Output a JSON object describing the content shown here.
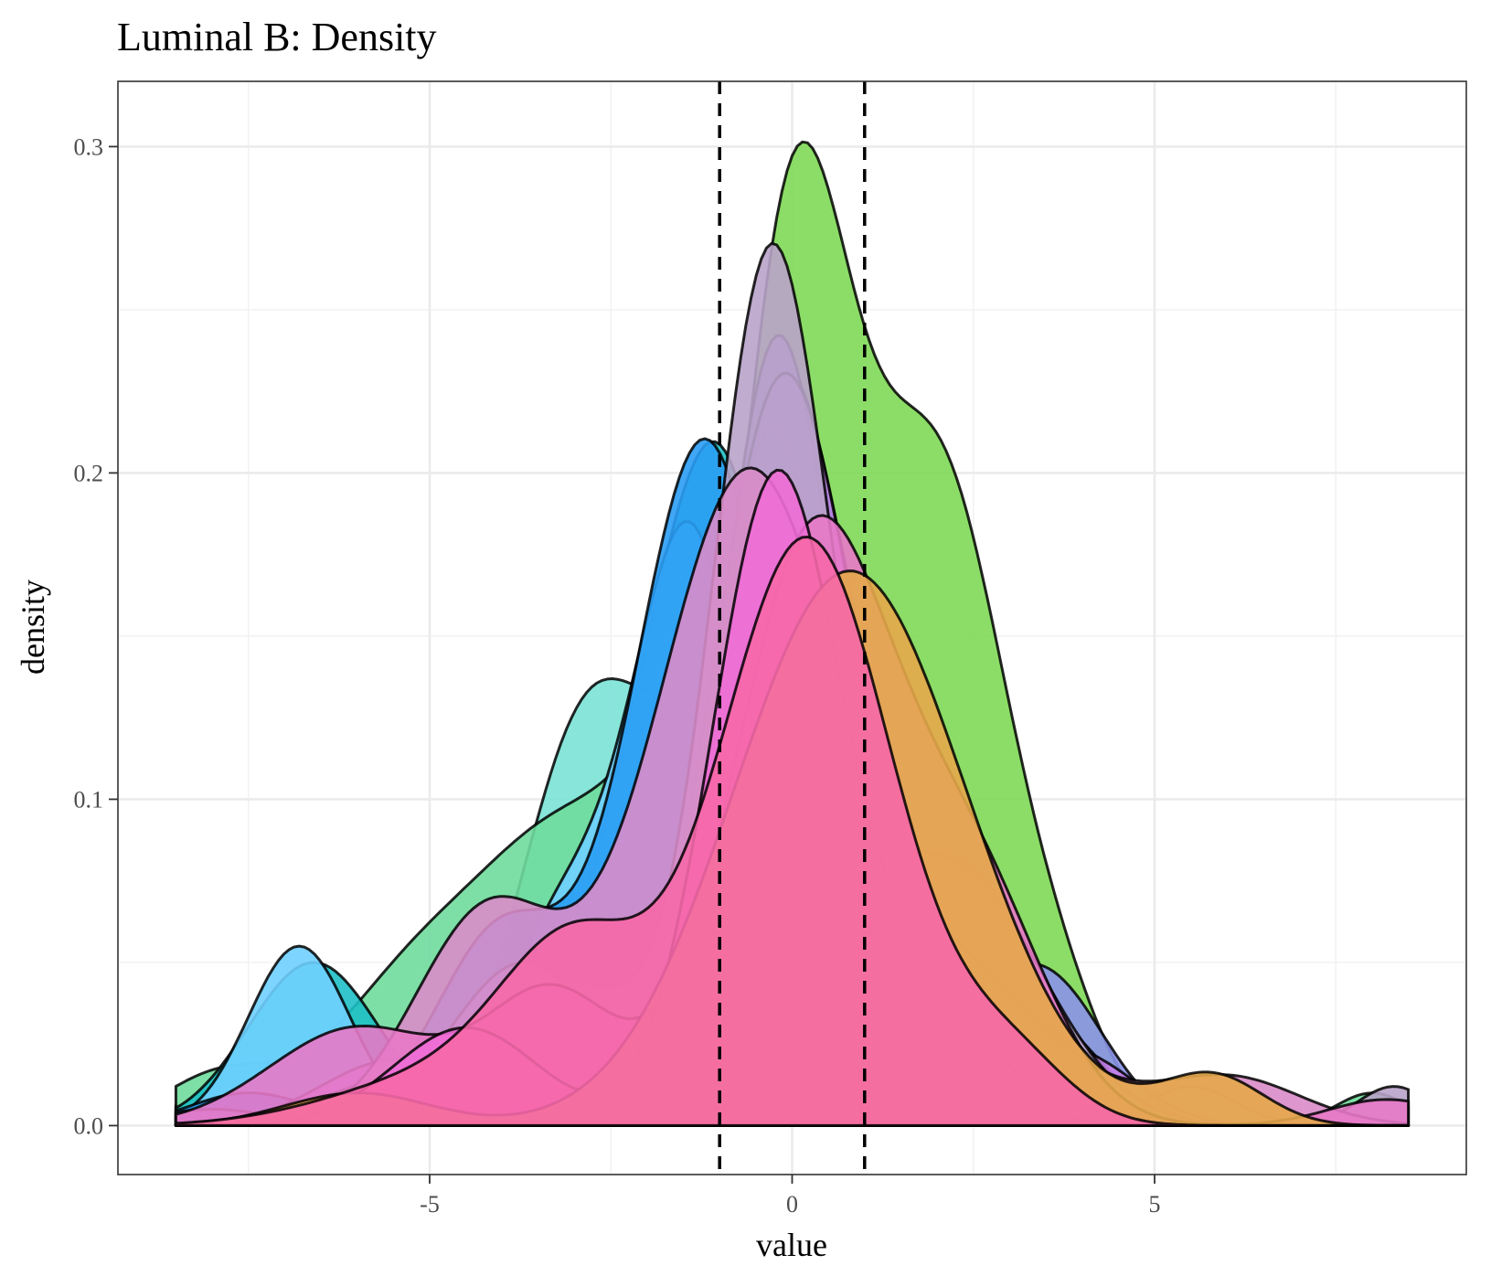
{
  "chart_data": {
    "type": "area",
    "title": "Luminal B: Density",
    "xlabel": "value",
    "ylabel": "density",
    "xlim": [
      -9.3,
      9.3
    ],
    "ylim": [
      -0.015,
      0.32
    ],
    "x_ticks": [
      -5,
      0,
      5
    ],
    "x_tick_labels": [
      "-5",
      "0",
      "5"
    ],
    "y_ticks": [
      0.0,
      0.1,
      0.2,
      0.3
    ],
    "y_tick_labels": [
      "0.0",
      "0.1",
      "0.2",
      "0.3"
    ],
    "x_minor_ticks": [
      -7.5,
      -2.5,
      2.5,
      7.5
    ],
    "y_minor_ticks": [
      0.05,
      0.15,
      0.25
    ],
    "grid": true,
    "legend": "none",
    "vlines": [
      -1,
      1
    ],
    "vline_style": "dashed",
    "series_range": [
      -8.5,
      8.5
    ],
    "series": [
      {
        "color": "#7be2d6",
        "components": [
          [
            0.006,
            -8.5,
            1.0
          ],
          [
            0.11,
            -2.9,
            0.9
          ],
          [
            0.13,
            -0.6,
            1.2
          ],
          [
            0.08,
            1.0,
            1.0
          ],
          [
            0.02,
            3.2,
            0.8
          ]
        ]
      },
      {
        "color": "#6fdc9c",
        "components": [
          [
            0.015,
            -7.9,
            0.8
          ],
          [
            0.05,
            -5.0,
            1.2
          ],
          [
            0.06,
            -3.2,
            1.0
          ],
          [
            0.18,
            -0.5,
            1.3
          ],
          [
            0.06,
            1.4,
            0.9
          ],
          [
            0.012,
            5.5,
            0.6
          ],
          [
            0.01,
            8.0,
            0.5
          ]
        ]
      },
      {
        "color": "#7ed957",
        "components": [
          [
            0.03,
            -3.0,
            0.9
          ],
          [
            0.27,
            0.0,
            0.8
          ],
          [
            0.2,
            2.0,
            1.0
          ],
          [
            0.018,
            3.8,
            0.6
          ]
        ]
      },
      {
        "color": "#2fc98b",
        "components": [
          [
            0.05,
            -3.4,
            0.8
          ],
          [
            0.23,
            -0.1,
            0.9
          ],
          [
            0.05,
            1.5,
            0.6
          ],
          [
            0.015,
            3.5,
            0.5
          ]
        ]
      },
      {
        "color": "#1ec0c6",
        "components": [
          [
            0.05,
            -6.6,
            0.9
          ],
          [
            0.05,
            -2.5,
            0.8
          ],
          [
            0.2,
            -1.0,
            0.9
          ],
          [
            0.02,
            1.2,
            0.7
          ]
        ]
      },
      {
        "color": "#6fd0ff",
        "components": [
          [
            0.055,
            -6.8,
            0.7
          ],
          [
            0.06,
            -3.2,
            0.8
          ],
          [
            0.18,
            -1.4,
            0.8
          ],
          [
            0.03,
            0.6,
            0.6
          ]
        ]
      },
      {
        "color": "#2a9df4",
        "components": [
          [
            0.01,
            -7.5,
            0.8
          ],
          [
            0.06,
            -4.0,
            0.9
          ],
          [
            0.21,
            -1.2,
            1.0
          ],
          [
            0.02,
            1.4,
            0.7
          ]
        ]
      },
      {
        "color": "#8a92e8",
        "components": [
          [
            0.005,
            -8.0,
            0.8
          ],
          [
            0.05,
            -3.7,
            1.0
          ],
          [
            0.21,
            -0.3,
            0.8
          ],
          [
            0.06,
            1.6,
            0.8
          ],
          [
            0.045,
            3.5,
            0.8
          ]
        ]
      },
      {
        "color": "#b08ff0",
        "components": [
          [
            0.03,
            -4.5,
            0.9
          ],
          [
            0.03,
            -2.6,
            0.6
          ],
          [
            0.24,
            -0.2,
            0.8
          ],
          [
            0.05,
            1.8,
            0.8
          ],
          [
            0.03,
            3.5,
            0.8
          ]
        ]
      },
      {
        "color": "#c47ee8",
        "components": [
          [
            0.02,
            -5.5,
            1.0
          ],
          [
            0.23,
            -0.1,
            1.0
          ],
          [
            0.04,
            2.2,
            0.8
          ],
          [
            0.02,
            4.0,
            0.8
          ]
        ]
      },
      {
        "color": "#b9a3c9",
        "components": [
          [
            0.015,
            -5.2,
            1.2
          ],
          [
            0.04,
            -3.0,
            1.0
          ],
          [
            0.26,
            -0.3,
            0.8
          ],
          [
            0.08,
            2.2,
            1.2
          ],
          [
            0.012,
            8.3,
            0.5
          ]
        ]
      },
      {
        "color": "#d98cc9",
        "components": [
          [
            0.065,
            -4.2,
            1.0
          ],
          [
            0.2,
            -0.6,
            1.3
          ],
          [
            0.04,
            2.5,
            1.2
          ],
          [
            0.015,
            6.0,
            1.0
          ]
        ]
      },
      {
        "color": "#e879c8",
        "components": [
          [
            0.03,
            -6.0,
            1.2
          ],
          [
            0.04,
            -3.3,
            0.9
          ],
          [
            0.18,
            0.3,
            1.1
          ],
          [
            0.07,
            2.5,
            1.0
          ],
          [
            0.008,
            8.2,
            0.8
          ]
        ]
      },
      {
        "color": "#ef6dd6",
        "components": [
          [
            0.03,
            -4.5,
            1.0
          ],
          [
            0.2,
            -0.2,
            0.9
          ],
          [
            0.04,
            2.0,
            0.8
          ]
        ]
      },
      {
        "color": "#e6a84a",
        "components": [
          [
            0.01,
            -6.0,
            1.0
          ],
          [
            0.17,
            0.8,
            1.6
          ],
          [
            0.015,
            5.8,
            0.7
          ]
        ]
      },
      {
        "color": "#f668a8",
        "components": [
          [
            0.015,
            -4.8,
            1.5
          ],
          [
            0.05,
            -3.0,
            1.0
          ],
          [
            0.18,
            0.2,
            1.2
          ],
          [
            0.02,
            3.0,
            0.8
          ]
        ]
      }
    ]
  }
}
